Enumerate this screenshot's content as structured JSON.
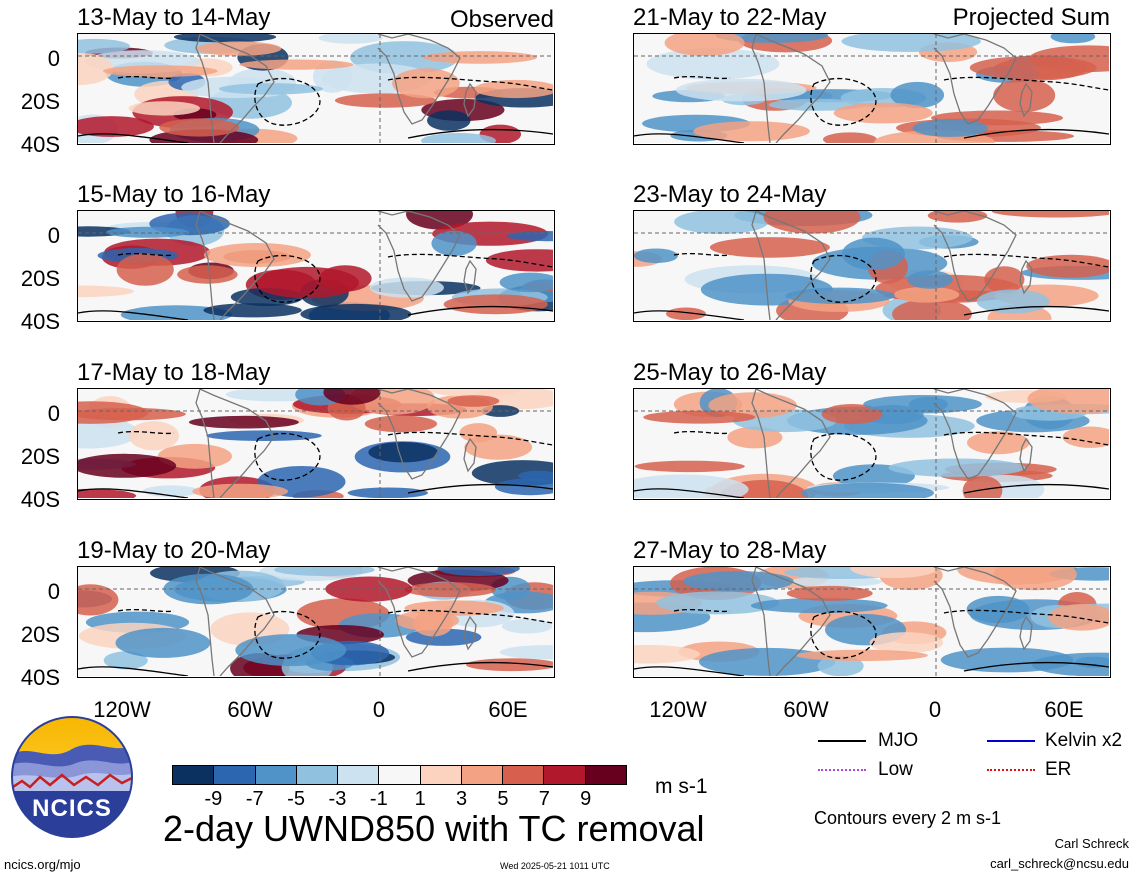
{
  "left_header": "Observed",
  "right_header": "Projected Sum",
  "panels_left": [
    {
      "title": "13-May to 14-May"
    },
    {
      "title": "15-May to 16-May"
    },
    {
      "title": "17-May to 18-May"
    },
    {
      "title": "19-May to 20-May"
    }
  ],
  "panels_right": [
    {
      "title": "21-May to 22-May"
    },
    {
      "title": "23-May to 24-May"
    },
    {
      "title": "25-May to 26-May"
    },
    {
      "title": "27-May to 28-May"
    }
  ],
  "y_ticks": [
    "0",
    "20S",
    "40S"
  ],
  "x_ticks": [
    "120W",
    "60W",
    "0",
    "60E"
  ],
  "colorbar": {
    "labels": [
      "-9",
      "-7",
      "-5",
      "-3",
      "-1",
      "1",
      "3",
      "5",
      "7",
      "9"
    ],
    "colors": [
      "#0b3160",
      "#2c66b0",
      "#4f93c8",
      "#90c2e0",
      "#cde2f0",
      "#f7f7f7",
      "#fbd3bf",
      "#f3a283",
      "#d6604d",
      "#b2182b",
      "#67001f"
    ],
    "units": "m s-1"
  },
  "legend": {
    "items": [
      {
        "label": "MJO",
        "color": "#000000"
      },
      {
        "label": "Kelvin x2",
        "color": "#0000cc"
      },
      {
        "label": "Low",
        "color": "#b048e0"
      },
      {
        "label": "ER",
        "color": "#dd1111"
      }
    ],
    "contour_note": "Contours every 2 m s-1"
  },
  "title": "2-day UWND850 with TC removal",
  "logo_text": "NCICS",
  "footer": {
    "left": "ncics.org/mjo",
    "center": "Wed 2025-05-21 1011 UTC",
    "author": "Carl Schreck",
    "email": "carl_schreck@ncsu.edu"
  }
}
